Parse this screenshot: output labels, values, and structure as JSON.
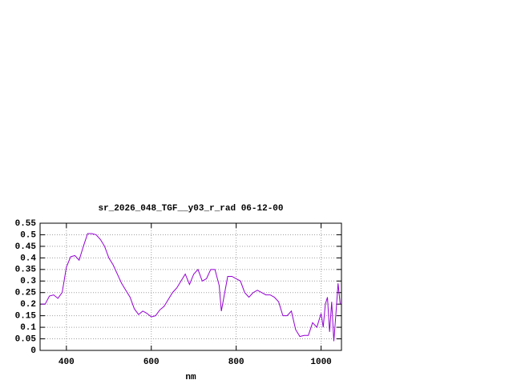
{
  "chart_data": {
    "type": "line",
    "title": "sr_2026_048_TGF__y03_r_rad 06-12-00",
    "xlabel": "nm",
    "x": [
      340,
      350,
      360,
      370,
      380,
      390,
      400,
      410,
      420,
      430,
      440,
      450,
      460,
      470,
      480,
      490,
      500,
      510,
      520,
      530,
      540,
      550,
      560,
      570,
      580,
      590,
      600,
      610,
      620,
      630,
      640,
      650,
      660,
      670,
      680,
      690,
      700,
      710,
      720,
      730,
      740,
      750,
      760,
      765,
      770,
      780,
      790,
      800,
      810,
      820,
      830,
      840,
      850,
      860,
      870,
      880,
      890,
      900,
      910,
      920,
      930,
      940,
      950,
      960,
      970,
      980,
      990,
      1000,
      1005,
      1010,
      1015,
      1020,
      1025,
      1030,
      1035,
      1040,
      1045
    ],
    "series": [
      {
        "name": "sr_2026_048_TGF__y03_r_rad",
        "color": "#9400d3",
        "values": [
          0.2,
          0.2,
          0.235,
          0.24,
          0.225,
          0.25,
          0.36,
          0.405,
          0.41,
          0.39,
          0.45,
          0.505,
          0.505,
          0.5,
          0.48,
          0.45,
          0.4,
          0.37,
          0.33,
          0.29,
          0.26,
          0.23,
          0.18,
          0.155,
          0.17,
          0.16,
          0.145,
          0.15,
          0.175,
          0.19,
          0.22,
          0.25,
          0.27,
          0.3,
          0.33,
          0.285,
          0.33,
          0.35,
          0.3,
          0.31,
          0.35,
          0.35,
          0.28,
          0.17,
          0.22,
          0.32,
          0.32,
          0.31,
          0.3,
          0.25,
          0.23,
          0.25,
          0.26,
          0.25,
          0.24,
          0.24,
          0.23,
          0.21,
          0.15,
          0.15,
          0.17,
          0.09,
          0.06,
          0.065,
          0.065,
          0.12,
          0.1,
          0.16,
          0.1,
          0.2,
          0.23,
          0.08,
          0.21,
          0.04,
          0.16,
          0.29,
          0.2
        ]
      }
    ],
    "xlim": [
      338,
      1048
    ],
    "xticks": [
      400,
      600,
      800,
      1000
    ],
    "ylim": [
      0,
      0.55
    ],
    "yticks": [
      0,
      0.05,
      0.1,
      0.15,
      0.2,
      0.25,
      0.3,
      0.35,
      0.4,
      0.45,
      0.5,
      0.55
    ],
    "grid": true
  }
}
